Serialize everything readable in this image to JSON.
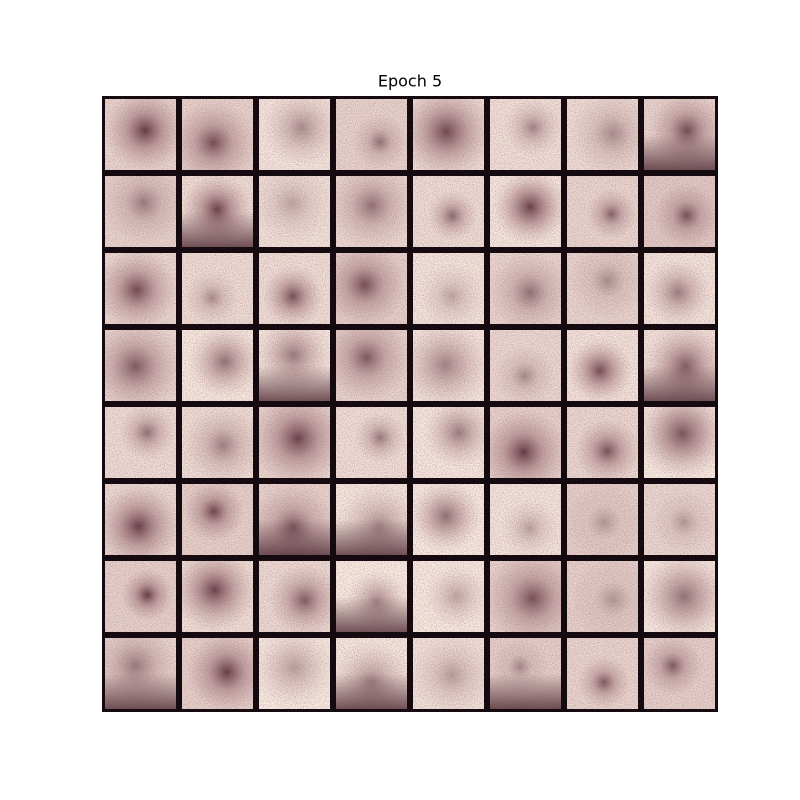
{
  "header": {
    "title": "Epoch 5"
  }
}
